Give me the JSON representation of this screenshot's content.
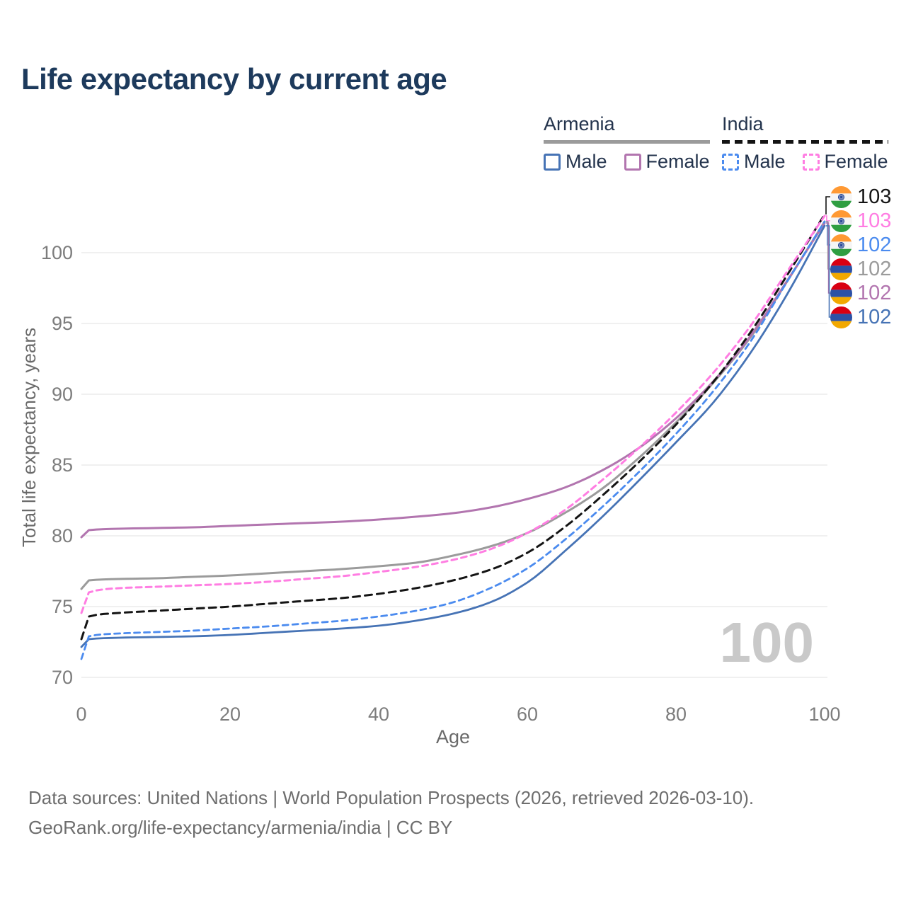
{
  "title": "Life expectancy by current age",
  "legend": {
    "groups": [
      {
        "label": "Armenia",
        "line_style": "solid",
        "underline_color": "#9b9b9b",
        "items": [
          {
            "label": "Male",
            "color": "#4673b5"
          },
          {
            "label": "Female",
            "color": "#b275af"
          }
        ]
      },
      {
        "label": "India",
        "line_style": "dashed",
        "underline_color": "#141414",
        "items": [
          {
            "label": "Male",
            "color": "#4b8bef"
          },
          {
            "label": "Female",
            "color": "#ff7de2"
          }
        ]
      }
    ]
  },
  "watermark_age": "100",
  "footer": {
    "line1": "Data sources: United Nations | World Population Prospects (2026, retrieved 2026-03-10).",
    "line2": "GeoRank.org/life-expectancy/armenia/india | CC BY"
  },
  "flags": {
    "india": [
      "#FF9933",
      "#F5F5F5",
      "#2f9e41"
    ],
    "india_chakra": "#1a3c8f",
    "armenia": [
      "#D90012",
      "#2c51a5",
      "#F2A800"
    ]
  },
  "chart_data": {
    "type": "line",
    "title": "Life expectancy by current age",
    "xlabel": "Age",
    "ylabel": "Total life expectancy, years",
    "x_ticks": [
      0,
      20,
      40,
      60,
      80,
      100
    ],
    "y_ticks": [
      70,
      75,
      80,
      85,
      90,
      95,
      100
    ],
    "xlim": [
      0,
      100
    ],
    "ylim": [
      68.5,
      103.5
    ],
    "grid": "horizontal",
    "legend_position": "top-right",
    "ages": [
      0,
      1,
      5,
      10,
      15,
      20,
      25,
      30,
      35,
      40,
      45,
      50,
      55,
      60,
      65,
      70,
      75,
      80,
      85,
      90,
      95,
      100
    ],
    "series": [
      {
        "key": "armenia_both",
        "name": "Armenia — Both sexes",
        "color": "#9b9b9b",
        "dash": null,
        "width": 3,
        "values": [
          76.25,
          76.85,
          76.95,
          77.0,
          77.1,
          77.2,
          77.35,
          77.5,
          77.65,
          77.85,
          78.1,
          78.6,
          79.25,
          80.2,
          81.6,
          83.3,
          85.5,
          88.0,
          90.8,
          94.0,
          98.0,
          102.2
        ]
      },
      {
        "key": "armenia_female",
        "name": "Armenia — Female",
        "color": "#b275af",
        "dash": null,
        "width": 3,
        "values": [
          79.9,
          80.4,
          80.5,
          80.55,
          80.6,
          80.7,
          80.8,
          80.9,
          81.0,
          81.15,
          81.35,
          81.6,
          82.0,
          82.6,
          83.4,
          84.6,
          86.2,
          88.3,
          90.9,
          94.1,
          98.05,
          102.1
        ]
      },
      {
        "key": "armenia_male",
        "name": "Armenia — Male",
        "color": "#4673b5",
        "dash": null,
        "width": 2.8,
        "values": [
          72.15,
          72.7,
          72.8,
          72.85,
          72.9,
          73.0,
          73.15,
          73.3,
          73.45,
          73.65,
          74.0,
          74.5,
          75.3,
          76.7,
          78.9,
          81.3,
          83.9,
          86.6,
          89.4,
          92.9,
          97.1,
          101.9
        ]
      },
      {
        "key": "india_male",
        "name": "India — Male",
        "color": "#4b8bef",
        "dash": [
          8,
          6
        ],
        "width": 2.8,
        "values": [
          71.3,
          72.9,
          73.1,
          73.2,
          73.3,
          73.45,
          73.6,
          73.8,
          74.0,
          74.3,
          74.7,
          75.3,
          76.3,
          77.7,
          79.7,
          82.0,
          84.5,
          87.2,
          90.2,
          93.7,
          98.0,
          102.2
        ]
      },
      {
        "key": "india_both",
        "name": "India — Both sexes",
        "color": "#141414",
        "dash": [
          10,
          7
        ],
        "width": 3,
        "values": [
          72.7,
          74.3,
          74.55,
          74.7,
          74.85,
          75.0,
          75.2,
          75.4,
          75.6,
          75.9,
          76.3,
          76.85,
          77.6,
          78.8,
          80.6,
          82.8,
          85.2,
          87.85,
          90.85,
          94.35,
          98.45,
          102.7
        ]
      },
      {
        "key": "india_female",
        "name": "India — Female",
        "color": "#ff7de2",
        "dash": [
          8,
          6
        ],
        "width": 3,
        "values": [
          74.55,
          76.0,
          76.3,
          76.4,
          76.5,
          76.6,
          76.75,
          76.95,
          77.15,
          77.45,
          77.8,
          78.3,
          79.05,
          80.2,
          81.8,
          83.9,
          86.2,
          88.7,
          91.5,
          94.8,
          98.7,
          102.6
        ]
      }
    ],
    "end_labels": [
      {
        "series_key": "india_both",
        "flag": "india",
        "value": "103"
      },
      {
        "series_key": "india_female",
        "flag": "india",
        "value": "103"
      },
      {
        "series_key": "india_male",
        "flag": "india",
        "value": "102"
      },
      {
        "series_key": "armenia_both",
        "flag": "armenia",
        "value": "102"
      },
      {
        "series_key": "armenia_female",
        "flag": "armenia",
        "value": "102"
      },
      {
        "series_key": "armenia_male",
        "flag": "armenia",
        "value": "102"
      }
    ]
  }
}
